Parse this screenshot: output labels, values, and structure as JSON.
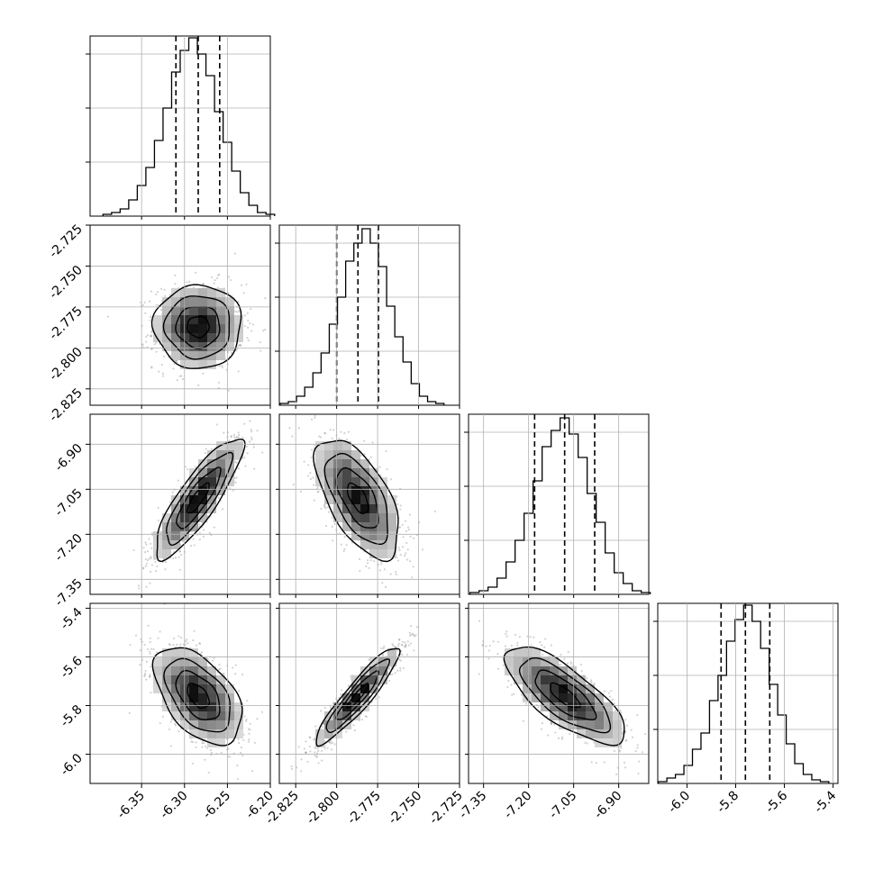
{
  "chart_data": {
    "type": "corner",
    "parameters": [
      {
        "range": [
          -6.41,
          -6.2
        ],
        "ticks": [
          "-6.35",
          "-6.30",
          "-6.25",
          "-6.20"
        ],
        "quantiles": [
          -6.31,
          -6.284,
          -6.259
        ],
        "hist_x": [
          -6.39,
          -6.38,
          -6.37,
          -6.36,
          -6.35,
          -6.34,
          -6.33,
          -6.32,
          -6.31,
          -6.3,
          -6.29,
          -6.28,
          -6.27,
          -6.26,
          -6.25,
          -6.24,
          -6.23,
          -6.22,
          -6.21,
          -6.2
        ],
        "hist_y": [
          0.01,
          0.02,
          0.04,
          0.09,
          0.17,
          0.27,
          0.42,
          0.6,
          0.8,
          0.92,
          0.99,
          0.9,
          0.78,
          0.58,
          0.41,
          0.25,
          0.13,
          0.06,
          0.02,
          0.01
        ]
      },
      {
        "range": [
          -2.835,
          -2.725
        ],
        "ticks": [
          "-2.825",
          "-2.800",
          "-2.775",
          "-2.750",
          "-2.725"
        ],
        "quantiles": [
          -2.8,
          -2.787,
          -2.7745
        ],
        "hist_x": [
          -2.832,
          -2.827,
          -2.822,
          -2.817,
          -2.812,
          -2.807,
          -2.802,
          -2.797,
          -2.792,
          -2.787,
          -2.782,
          -2.777,
          -2.772,
          -2.767,
          -2.762,
          -2.757,
          -2.752,
          -2.747,
          -2.742,
          -2.737
        ],
        "hist_y": [
          0.01,
          0.02,
          0.05,
          0.1,
          0.18,
          0.29,
          0.45,
          0.6,
          0.8,
          0.9,
          0.98,
          0.9,
          0.77,
          0.55,
          0.38,
          0.24,
          0.12,
          0.05,
          0.02,
          0.01
        ]
      },
      {
        "range": [
          -7.4,
          -6.8
        ],
        "ticks": [
          "-7.35",
          "-7.20",
          "-7.05",
          "-6.90"
        ],
        "quantiles": [
          -7.18,
          -7.08,
          -6.98
        ],
        "hist_x": [
          -7.38,
          -7.35,
          -7.32,
          -7.29,
          -7.26,
          -7.23,
          -7.2,
          -7.17,
          -7.14,
          -7.11,
          -7.08,
          -7.05,
          -7.02,
          -6.99,
          -6.96,
          -6.93,
          -6.9,
          -6.87,
          -6.84,
          -6.81
        ],
        "hist_y": [
          0.01,
          0.02,
          0.04,
          0.09,
          0.18,
          0.3,
          0.45,
          0.63,
          0.82,
          0.91,
          0.98,
          0.89,
          0.76,
          0.56,
          0.4,
          0.23,
          0.12,
          0.06,
          0.02,
          0.01
        ]
      },
      {
        "range": [
          -6.12,
          -5.38
        ],
        "ticks": [
          "-6.0",
          "-5.8",
          "-5.6",
          "-5.4"
        ],
        "quantiles": [
          -5.86,
          -5.76,
          -5.66
        ],
        "hist_x": [
          -6.1,
          -6.065,
          -6.03,
          -5.995,
          -5.96,
          -5.925,
          -5.89,
          -5.855,
          -5.82,
          -5.785,
          -5.75,
          -5.715,
          -5.68,
          -5.645,
          -5.61,
          -5.575,
          -5.54,
          -5.505,
          -5.47,
          -5.435
        ],
        "hist_y": [
          0.01,
          0.03,
          0.05,
          0.1,
          0.19,
          0.28,
          0.46,
          0.6,
          0.79,
          0.91,
          0.99,
          0.9,
          0.75,
          0.55,
          0.38,
          0.22,
          0.11,
          0.05,
          0.02,
          0.01
        ]
      }
    ],
    "pairs": [
      {
        "x": 0,
        "y": 1,
        "correlation": 0.0
      },
      {
        "x": 0,
        "y": 2,
        "correlation": 0.85
      },
      {
        "x": 1,
        "y": 2,
        "correlation": -0.6
      },
      {
        "x": 0,
        "y": 3,
        "correlation": -0.5
      },
      {
        "x": 1,
        "y": 3,
        "correlation": 0.92
      },
      {
        "x": 2,
        "y": 3,
        "correlation": -0.75
      }
    ],
    "contour_levels_sigma": [
      0.5,
      1.0,
      1.5,
      2.0
    ],
    "grid": true,
    "colors": {
      "line": "#000000",
      "grid": "#b0b0b0",
      "points": "#7f7f7f",
      "density_light": "#f2f2f2",
      "density_dark": "#000000"
    }
  }
}
